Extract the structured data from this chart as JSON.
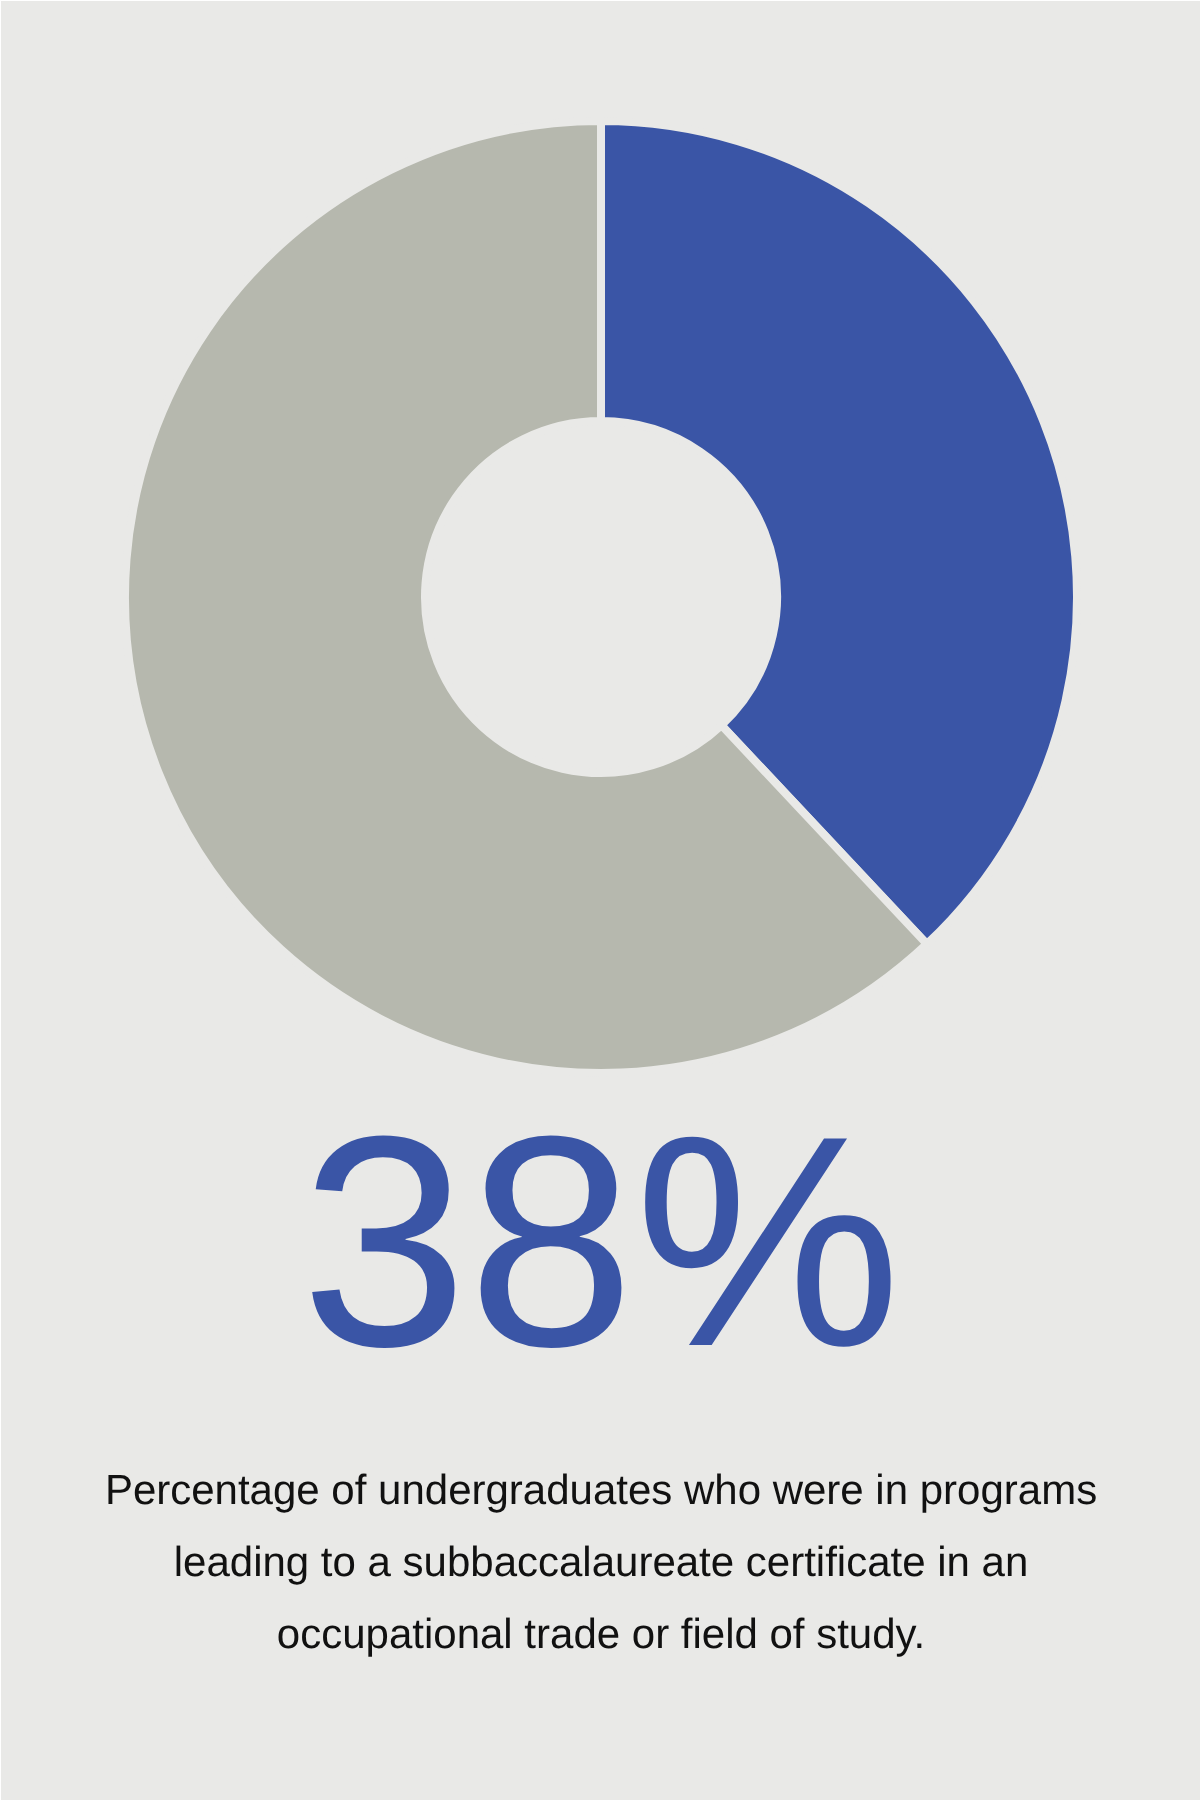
{
  "chart_data": {
    "type": "donut",
    "categories": [
      null,
      null
    ],
    "values": [
      38,
      62
    ],
    "colors": [
      "#3a55a6",
      "#b6b8ae"
    ],
    "title": "38%",
    "annotations": [
      "Percentage of undergraduates who were in programs leading to a subbaccalaureate certificate in an occupational trade or field of study."
    ]
  }
}
